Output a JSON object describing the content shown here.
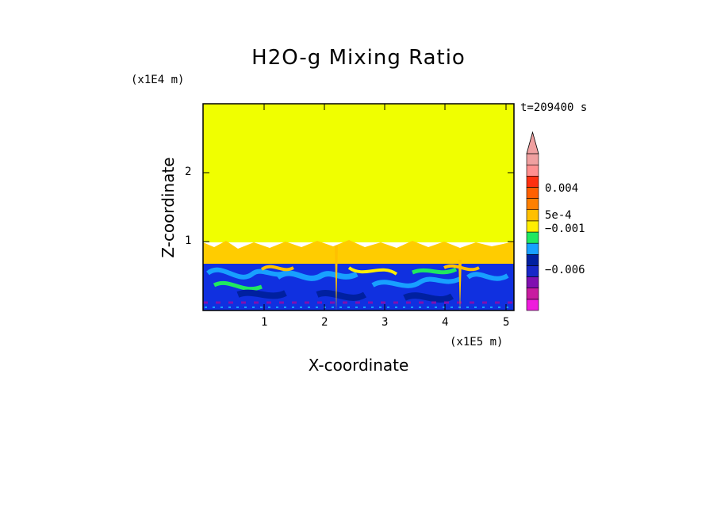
{
  "chart_data": {
    "type": "heatmap",
    "title": "H2O-g Mixing Ratio",
    "time_label": "t=209400 s",
    "xlabel": "X-coordinate",
    "ylabel": "Z-coordinate",
    "x_scale_label": "(x1E5 m)",
    "y_scale_label": "(x1E4 m)",
    "xlim": [
      0,
      5.1
    ],
    "ylim": [
      0,
      3
    ],
    "x_ticks": [
      "1",
      "2",
      "3",
      "4",
      "5"
    ],
    "x_tick_values": [
      1,
      2,
      3,
      4,
      5
    ],
    "y_ticks": [
      "1",
      "2"
    ],
    "y_tick_values": [
      1,
      2
    ],
    "layers": [
      {
        "name": "upper",
        "z_range": [
          1.0,
          3.0
        ],
        "color": "#f0ff00"
      },
      {
        "name": "orange band",
        "z_range": [
          0.72,
          1.0
        ],
        "color": "#ffcc00"
      },
      {
        "name": "turbulent lower layer",
        "z_range": [
          0.0,
          0.72
        ],
        "color": "#1030e0"
      }
    ],
    "colorbar": {
      "extend": "max",
      "labels": [
        "0.004",
        "5e-4",
        "−0.001",
        "−0.006"
      ],
      "colors": [
        "#ee1cdc",
        "#c81ca0",
        "#8010b0",
        "#1828c8",
        "#0020a0",
        "#18a0ff",
        "#20e860",
        "#ffee00",
        "#ffc000",
        "#ff8000",
        "#ff6000",
        "#ff3010",
        "#ff9090",
        "#f0a0a0"
      ]
    }
  }
}
